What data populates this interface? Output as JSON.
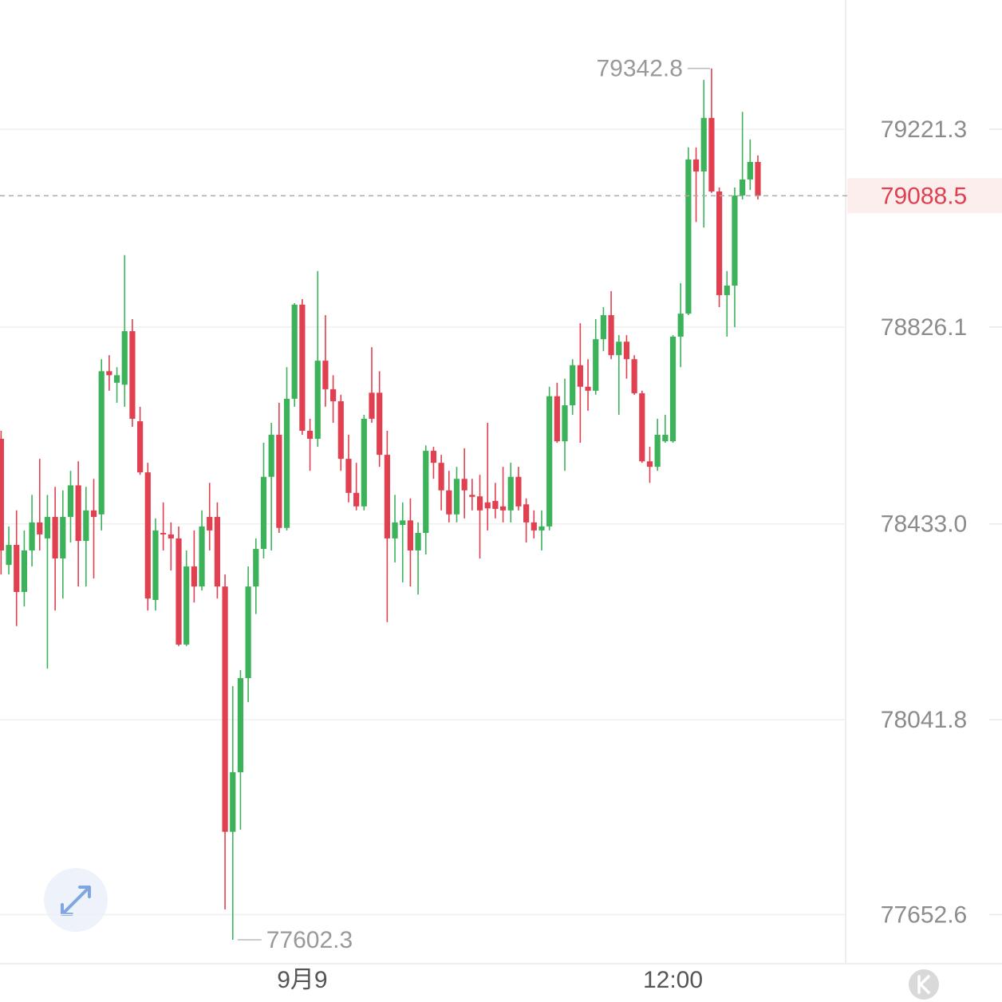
{
  "chart_data": {
    "type": "candlestick",
    "categories": [
      null,
      null,
      null,
      null,
      null,
      null,
      null,
      null,
      null,
      null,
      null,
      null,
      null,
      null,
      null,
      null,
      null,
      null,
      null,
      null,
      null,
      null,
      null,
      null,
      null,
      null,
      null,
      null,
      null,
      null,
      null,
      null,
      null,
      null,
      null,
      null,
      null,
      null,
      null,
      "9月9",
      null,
      null,
      null,
      null,
      null,
      null,
      null,
      null,
      null,
      null,
      null,
      null,
      null,
      null,
      null,
      null,
      null,
      null,
      null,
      null,
      null,
      null,
      null,
      null,
      null,
      null,
      null,
      null,
      null,
      null,
      null,
      null,
      null,
      null,
      null,
      null,
      null,
      null,
      null,
      null,
      null,
      null,
      null,
      null,
      null,
      null,
      null,
      "12:00",
      null,
      null,
      null,
      null,
      null,
      null,
      null,
      null,
      null,
      null,
      null
    ],
    "open": [
      78603,
      78351,
      78391,
      78297,
      78380,
      78436,
      78404,
      78447,
      78364,
      78447,
      78510,
      78399,
      78460,
      78452,
      78738,
      78715,
      78711,
      78818,
      78638,
      78536,
      78281,
      78415,
      78412,
      78404,
      78192,
      78348,
      78308,
      78447,
      78447,
      78308,
      77818,
      77937,
      78125,
      78308,
      78383,
      78527,
      78611,
      78425,
      78683,
      78871,
      78619,
      78603,
      78759,
      78702,
      78678,
      78563,
      78495,
      78468,
      78695,
      78695,
      78571,
      78404,
      78431,
      78440,
      78380,
      78415,
      78579,
      78555,
      78500,
      78452,
      78523,
      78491,
      78488,
      78476,
      78479,
      78468,
      78460,
      78527,
      78472,
      78436,
      78420,
      78428,
      78688,
      78598,
      78670,
      78750,
      78707,
      78699,
      78802,
      78850,
      78770,
      78797,
      78762,
      78694,
      78558,
      78547,
      78598,
      78598,
      78807,
      78853,
      79161,
      79137,
      79244,
      79097,
      78890,
      78909,
      79089,
      79121,
      79156
    ],
    "high": [
      78619,
      78428,
      78460,
      78420,
      78491,
      78563,
      78491,
      78507,
      78500,
      78539,
      78558,
      78507,
      78523,
      78762,
      78770,
      78746,
      78970,
      78842,
      78667,
      78555,
      78444,
      78476,
      78436,
      78428,
      78380,
      78420,
      78460,
      78515,
      78476,
      78332,
      78109,
      78141,
      78348,
      78404,
      78595,
      78635,
      78675,
      78746,
      78874,
      78882,
      78643,
      78938,
      78850,
      78730,
      78691,
      78611,
      78555,
      78651,
      78786,
      78738,
      78619,
      78491,
      78476,
      78484,
      78436,
      78590,
      78587,
      78571,
      78539,
      78547,
      78584,
      78523,
      78531,
      78635,
      78515,
      78547,
      78555,
      78547,
      78484,
      78460,
      78460,
      78707,
      78715,
      78723,
      78762,
      78834,
      78762,
      78842,
      78866,
      78898,
      78810,
      78810,
      78770,
      78699,
      78587,
      78643,
      78651,
      78810,
      78914,
      79185,
      79185,
      79320,
      79342.8,
      79105,
      78938,
      79105,
      79256,
      79201,
      79169
    ],
    "low": [
      78332,
      78332,
      78229,
      78268,
      78348,
      78380,
      78144,
      78260,
      78284,
      78396,
      78308,
      78308,
      78324,
      78420,
      78699,
      78675,
      78667,
      78627,
      78531,
      78260,
      78260,
      78380,
      78340,
      78189,
      78189,
      78276,
      78300,
      78380,
      78284,
      77663,
      77602.3,
      77822,
      78077,
      78253,
      78364,
      78380,
      78415,
      78420,
      78667,
      78611,
      78539,
      78587,
      78667,
      78635,
      78539,
      78476,
      78460,
      78460,
      78635,
      78547,
      78237,
      78356,
      78316,
      78308,
      78292,
      78372,
      78523,
      78460,
      78436,
      78436,
      78444,
      78460,
      78364,
      78420,
      78444,
      78436,
      78436,
      78460,
      78396,
      78404,
      78380,
      78420,
      78595,
      78539,
      78651,
      78595,
      78659,
      78691,
      78778,
      78762,
      78651,
      78723,
      78691,
      78555,
      78515,
      78539,
      78595,
      78595,
      78746,
      78850,
      79036,
      79025,
      79094,
      78866,
      78807,
      78826,
      79081,
      79100,
      79081
    ],
    "close": [
      78380,
      78391,
      78297,
      78380,
      78436,
      78412,
      78447,
      78364,
      78447,
      78510,
      78399,
      78460,
      78447,
      78738,
      78730,
      78730,
      78818,
      78643,
      78536,
      78284,
      78420,
      78412,
      78404,
      78192,
      78348,
      78308,
      78428,
      78420,
      78308,
      77818,
      77937,
      78125,
      78308,
      78383,
      78527,
      78611,
      78425,
      78683,
      78871,
      78619,
      78603,
      78759,
      78702,
      78678,
      78563,
      78495,
      78468,
      78643,
      78643,
      78571,
      78404,
      78436,
      78440,
      78380,
      78415,
      78579,
      78555,
      78500,
      78452,
      78523,
      78500,
      78487,
      78460,
      78464,
      78463,
      78460,
      78527,
      78468,
      78436,
      78420,
      78428,
      78688,
      78598,
      78670,
      78750,
      78707,
      78699,
      78802,
      78850,
      78770,
      78797,
      78762,
      78694,
      78558,
      78547,
      78611,
      78611,
      78807,
      78853,
      79161,
      79137,
      79244,
      79097,
      78890,
      78909,
      79089,
      79121,
      79156,
      79088.5
    ],
    "up_color": "#3cb35a",
    "down_color": "#e0404f",
    "ylim": [
      77554.5,
      79479.5
    ],
    "yticks": [
      79221.3,
      78826.1,
      {
        "value": 78433.0,
        "label": "78433.0"
      },
      78041.8,
      77652.6
    ],
    "grid": true
  }
}
